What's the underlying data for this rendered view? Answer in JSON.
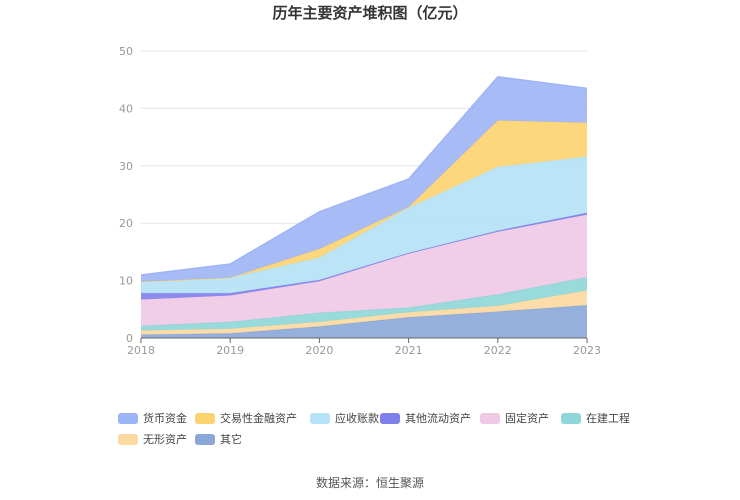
{
  "chart_data": {
    "type": "area",
    "stacked": true,
    "title": "历年主要资产堆积图（亿元）",
    "source": "数据来源：恒生聚源",
    "x": [
      "2018",
      "2019",
      "2020",
      "2021",
      "2022",
      "2023"
    ],
    "ylim": [
      0,
      50
    ],
    "yticks": [
      "0",
      "10",
      "20",
      "30",
      "40",
      "50"
    ],
    "grid": true,
    "legend_position": "bottom",
    "series": [
      {
        "name": "其它",
        "color": "#8aa7d8",
        "values": [
          0.6,
          0.8,
          2.0,
          3.6,
          4.6,
          5.7
        ]
      },
      {
        "name": "无形资产",
        "color": "#fcd9a0",
        "values": [
          0.7,
          0.8,
          0.8,
          0.9,
          1.0,
          2.6
        ]
      },
      {
        "name": "在建工程",
        "color": "#8ed6d9",
        "values": [
          0.8,
          1.2,
          1.6,
          0.8,
          2.0,
          2.3
        ]
      },
      {
        "name": "固定资产",
        "color": "#efc9e4",
        "values": [
          4.6,
          4.6,
          5.5,
          9.4,
          10.9,
          10.9
        ]
      },
      {
        "name": "其他流动资产",
        "color": "#7f80ea",
        "values": [
          1.1,
          0.4,
          0.2,
          0.1,
          0.2,
          0.3
        ]
      },
      {
        "name": "应收账款",
        "color": "#b4e2f6",
        "values": [
          2.0,
          2.7,
          3.9,
          7.9,
          11.1,
          9.8
        ]
      },
      {
        "name": "交易性金融资产",
        "color": "#fdd36f",
        "values": [
          0.0,
          0.0,
          1.5,
          0.1,
          8.1,
          5.9
        ]
      },
      {
        "name": "货币资金",
        "color": "#9db4f6",
        "values": [
          1.2,
          2.4,
          6.5,
          4.9,
          7.6,
          6.0
        ]
      }
    ],
    "legend_order": [
      "货币资金",
      "交易性金融资产",
      "应收账款",
      "其他流动资产",
      "固定资产",
      "在建工程",
      "无形资产",
      "其它"
    ]
  }
}
